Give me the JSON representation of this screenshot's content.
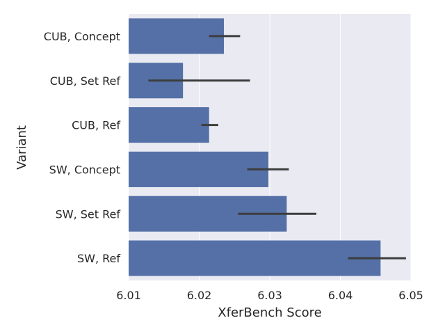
{
  "chart_data": {
    "type": "bar",
    "orientation": "horizontal",
    "title": "",
    "xlabel": "XferBench Score",
    "ylabel": "Variant",
    "xlim": [
      6.01,
      6.05
    ],
    "xticks": [
      "6.01",
      "6.02",
      "6.03",
      "6.04",
      "6.05"
    ],
    "tick_values": [
      6.01,
      6.02,
      6.03,
      6.04,
      6.05
    ],
    "grid": true,
    "bar_color": "#5470a6",
    "error_color": "#3d3d3d",
    "background": "#eaeaf2",
    "categories": [
      "CUB, Concept",
      "CUB, Set Ref",
      "CUB, Ref",
      "SW, Concept",
      "SW, Set Ref",
      "SW, Ref"
    ],
    "values": [
      6.0235,
      6.0177,
      6.0214,
      6.0298,
      6.0324,
      6.0457
    ],
    "error_low": [
      6.0214,
      6.0128,
      6.0203,
      6.0268,
      6.0255,
      6.0411
    ],
    "error_high": [
      6.0258,
      6.0272,
      6.0227,
      6.0327,
      6.0366,
      6.0493
    ]
  }
}
